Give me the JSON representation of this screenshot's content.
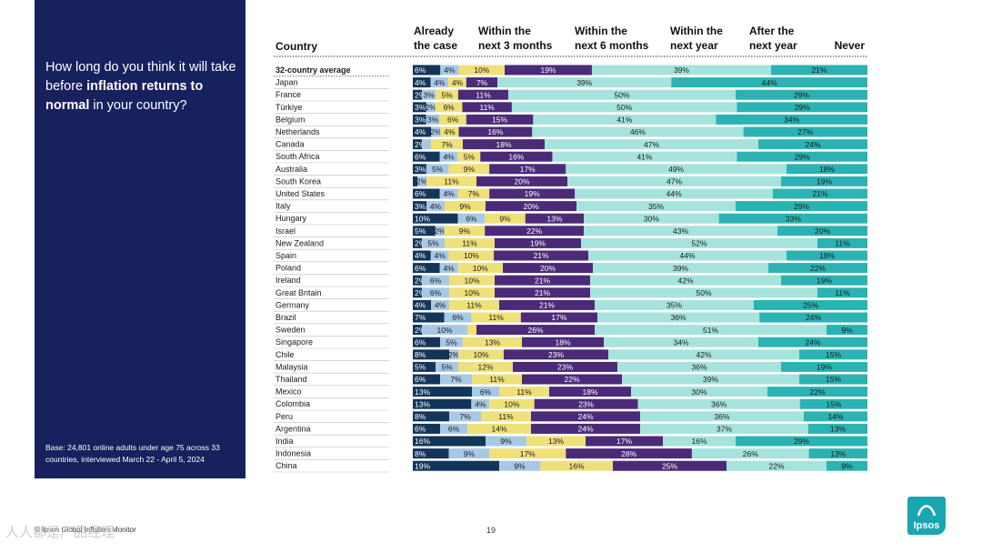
{
  "question": {
    "pre": "How long do you think it will take before ",
    "bold": "inflation returns to normal",
    "post": " in your country?"
  },
  "base_note": "Base: 24,801 online adults under age 75 across 33 countries, interviewed March 22 - April 5, 2024",
  "footer": {
    "source": "© Ipsos Global Inflation Monitor",
    "page_number": "19",
    "logo_text": "Ipsos",
    "watermark": "人人都是产品经理"
  },
  "chart_data": {
    "type": "bar",
    "orientation": "horizontal",
    "stacked": true,
    "normalized": true,
    "category_header": "Country",
    "series": [
      {
        "name": "Already the case",
        "color": "#13355a",
        "label_color": "#ffffff"
      },
      {
        "name": "Within the next 3 months",
        "color": "#a8c9e6",
        "label_color": "#1a1a1a"
      },
      {
        "name": "Within the next 6 months",
        "color": "#efe07a",
        "label_color": "#1a1a1a"
      },
      {
        "name": "Within the next year",
        "color": "#4b2a78",
        "label_color": "#ffffff"
      },
      {
        "name": "After the next year",
        "color": "#a6e3dc",
        "label_color": "#1a1a1a"
      },
      {
        "name": "Never",
        "color": "#2bb3b3",
        "label_color": "#1a1a1a"
      }
    ],
    "categories": [
      "32-country average",
      "Japan",
      "France",
      "Türkiye",
      "Belgium",
      "Netherlands",
      "Canada",
      "South Africa",
      "Australia",
      "South Korea",
      "United States",
      "Italy",
      "Hungary",
      "Israel",
      "New Zealand",
      "Spain",
      "Poland",
      "Ireland",
      "Great Britain",
      "Germany",
      "Brazil",
      "Sweden",
      "Singapore",
      "Chile",
      "Malaysia",
      "Thailand",
      "Mexico",
      "Colombia",
      "Peru",
      "Argentina",
      "India",
      "Indonesia",
      "China"
    ],
    "values": [
      [
        6,
        4,
        10,
        19,
        39,
        21
      ],
      [
        4,
        4,
        4,
        7,
        39,
        44
      ],
      [
        2,
        3,
        5,
        11,
        50,
        29
      ],
      [
        3,
        2,
        6,
        11,
        50,
        29
      ],
      [
        3,
        3,
        6,
        15,
        41,
        34
      ],
      [
        4,
        2,
        4,
        16,
        46,
        27
      ],
      [
        2,
        2,
        7,
        18,
        47,
        24
      ],
      [
        6,
        4,
        5,
        16,
        41,
        29
      ],
      [
        3,
        5,
        9,
        17,
        49,
        18
      ],
      [
        1,
        2,
        11,
        20,
        47,
        19
      ],
      [
        6,
        4,
        7,
        19,
        44,
        21
      ],
      [
        3,
        4,
        9,
        20,
        35,
        29
      ],
      [
        10,
        6,
        9,
        13,
        30,
        33
      ],
      [
        5,
        2,
        9,
        22,
        43,
        20
      ],
      [
        2,
        5,
        11,
        19,
        52,
        11
      ],
      [
        4,
        4,
        10,
        21,
        44,
        18
      ],
      [
        6,
        4,
        10,
        20,
        39,
        22
      ],
      [
        2,
        6,
        10,
        21,
        42,
        19
      ],
      [
        2,
        6,
        10,
        21,
        50,
        11
      ],
      [
        4,
        4,
        11,
        21,
        35,
        25
      ],
      [
        7,
        6,
        11,
        17,
        36,
        24
      ],
      [
        2,
        10,
        2,
        26,
        51,
        9
      ],
      [
        6,
        5,
        13,
        18,
        34,
        24
      ],
      [
        8,
        2,
        10,
        23,
        42,
        15
      ],
      [
        5,
        5,
        12,
        23,
        36,
        19
      ],
      [
        6,
        7,
        11,
        22,
        39,
        15
      ],
      [
        13,
        6,
        11,
        18,
        30,
        22
      ],
      [
        13,
        4,
        10,
        23,
        36,
        15
      ],
      [
        8,
        7,
        11,
        24,
        36,
        14
      ],
      [
        6,
        6,
        14,
        24,
        37,
        13
      ],
      [
        16,
        9,
        13,
        17,
        16,
        29
      ],
      [
        8,
        9,
        17,
        28,
        26,
        13
      ],
      [
        19,
        9,
        16,
        25,
        22,
        9
      ]
    ],
    "value_labels": [
      [
        "6%",
        "4%",
        "10%",
        "19%",
        "39%",
        "21%"
      ],
      [
        "4%",
        "4%",
        "4%",
        "7%",
        "39%",
        "44%"
      ],
      [
        "2%",
        "3%",
        "5%",
        "11%",
        "50%",
        "29%"
      ],
      [
        "3%",
        "2%",
        "6%",
        "11%",
        "50%",
        "29%"
      ],
      [
        "3%",
        "3%",
        "6%",
        "15%",
        "41%",
        "34%"
      ],
      [
        "4%",
        "2%",
        "4%",
        "16%",
        "46%",
        "27%"
      ],
      [
        "2%",
        "",
        "7%",
        "18%",
        "47%",
        "24%"
      ],
      [
        "6%",
        "4%",
        "5%",
        "16%",
        "41%",
        "29%"
      ],
      [
        "3%",
        "5%",
        "9%",
        "17%",
        "49%",
        "18%"
      ],
      [
        "",
        "2%",
        "11%",
        "20%",
        "47%",
        "19%"
      ],
      [
        "6%",
        "4%",
        "7%",
        "19%",
        "44%",
        "21%"
      ],
      [
        "3%",
        "4%",
        "9%",
        "20%",
        "35%",
        "29%"
      ],
      [
        "10%",
        "6%",
        "9%",
        "13%",
        "30%",
        "33%"
      ],
      [
        "5%",
        "2%",
        "9%",
        "22%",
        "43%",
        "20%"
      ],
      [
        "2%",
        "5%",
        "11%",
        "19%",
        "52%",
        "11%"
      ],
      [
        "4%",
        "4%",
        "10%",
        "21%",
        "44%",
        "18%"
      ],
      [
        "6%",
        "4%",
        "10%",
        "20%",
        "39%",
        "22%"
      ],
      [
        "2%",
        "6%",
        "10%",
        "21%",
        "42%",
        "19%"
      ],
      [
        "2%",
        "6%",
        "10%",
        "21%",
        "50%",
        "11%"
      ],
      [
        "4%",
        "4%",
        "11%",
        "21%",
        "35%",
        "25%"
      ],
      [
        "7%",
        "6%",
        "11%",
        "17%",
        "36%",
        "24%"
      ],
      [
        "2%",
        "10%",
        "",
        "26%",
        "51%",
        "9%"
      ],
      [
        "6%",
        "5%",
        "13%",
        "18%",
        "34%",
        "24%"
      ],
      [
        "8%",
        "2%",
        "10%",
        "23%",
        "42%",
        "15%"
      ],
      [
        "5%",
        "5%",
        "12%",
        "23%",
        "36%",
        "19%"
      ],
      [
        "6%",
        "7%",
        "11%",
        "22%",
        "39%",
        "15%"
      ],
      [
        "13%",
        "6%",
        "11%",
        "18%",
        "30%",
        "22%"
      ],
      [
        "13%",
        "4%",
        "10%",
        "23%",
        "36%",
        "15%"
      ],
      [
        "8%",
        "7%",
        "11%",
        "24%",
        "36%",
        "14%"
      ],
      [
        "6%",
        "6%",
        "14%",
        "24%",
        "37%",
        "13%"
      ],
      [
        "16%",
        "9%",
        "13%",
        "17%",
        "16%",
        "29%"
      ],
      [
        "8%",
        "9%",
        "17%",
        "28%",
        "26%",
        "13%"
      ],
      [
        "19%",
        "9%",
        "16%",
        "25%",
        "22%",
        "9%"
      ]
    ],
    "header_lines": [
      [
        "Already",
        "the case"
      ],
      [
        "Within the",
        "next 3 months"
      ],
      [
        "Within the",
        "next 6 months"
      ],
      [
        "Within the",
        "next year"
      ],
      [
        "After the",
        "next year"
      ],
      [
        "",
        "Never"
      ]
    ]
  }
}
